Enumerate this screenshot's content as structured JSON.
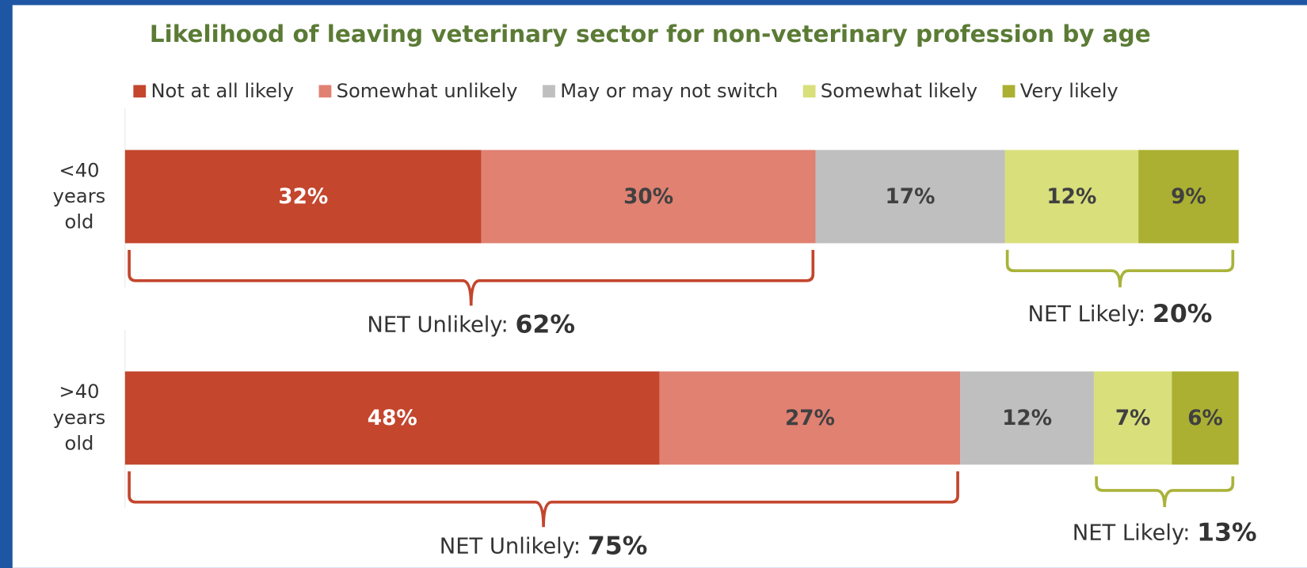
{
  "chart_data": {
    "type": "stacked-bar-horizontal",
    "title": "Likelihood of leaving veterinary sector for non-veterinary profession by age",
    "categories": [
      "<40 years old",
      ">40 years old"
    ],
    "xlim": [
      0,
      100
    ],
    "legend": "top",
    "series": [
      {
        "name": "Not at all likely",
        "color": "#c3462d",
        "label_color": "#ffffff",
        "values": [
          32,
          48
        ],
        "value_labels": [
          "32%",
          "48%"
        ]
      },
      {
        "name": "Somewhat unlikely",
        "color": "#e08172",
        "label_color": "#404040",
        "values": [
          30,
          27
        ],
        "value_labels": [
          "30%",
          "27%"
        ]
      },
      {
        "name": "May or may not switch",
        "color": "#bfbfbf",
        "label_color": "#404040",
        "values": [
          17,
          12
        ],
        "value_labels": [
          "17%",
          "12%"
        ]
      },
      {
        "name": "Somewhat likely",
        "color": "#d9df7b",
        "label_color": "#404040",
        "values": [
          12,
          7
        ],
        "value_labels": [
          "12%",
          "7%"
        ]
      },
      {
        "name": "Very likely",
        "color": "#abb032",
        "label_color": "#404040",
        "values": [
          9,
          6
        ],
        "value_labels": [
          "9%",
          "6%"
        ]
      }
    ],
    "net": [
      {
        "unlikely_label": "NET Unlikely:",
        "unlikely": "62%",
        "likely_label": "NET Likely:",
        "likely": "20%"
      },
      {
        "unlikely_label": "NET Unlikely:",
        "unlikely": "75%",
        "likely_label": "NET Likely:",
        "likely": "13%"
      }
    ]
  }
}
